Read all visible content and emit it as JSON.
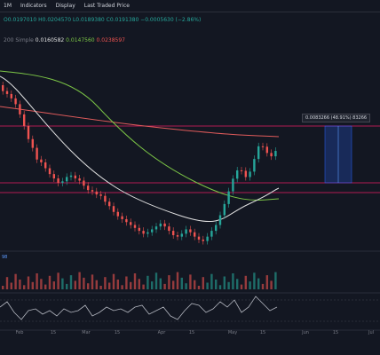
{
  "toolbar": {
    "interval": "1M",
    "indicators_label": "Indicators",
    "display_label": "Display",
    "price_label": "Last Traded Price"
  },
  "legend": {
    "ohlc": "O0.0197010 H0.0204570 L0.0189380 C0.0191380 −0.0005630 (−2.86%)",
    "sma": "200 Simple",
    "sma_values": [
      "0.0160582",
      "0.0147560",
      "0.0238597"
    ]
  },
  "volume_label": "98",
  "measure_tag": "0.0083266 (48.91%) 83266",
  "x_labels": [
    "Feb",
    "15",
    "Mar",
    "15",
    "Apr",
    "15",
    "May",
    "15",
    "Jun",
    "15",
    "Jul"
  ],
  "colors": {
    "up": "#26a69a",
    "down": "#ef5350",
    "ma_green": "#7cc646",
    "ma_white": "#e0e0e0",
    "ma_red": "#e05b5b",
    "hline": "#e91e63",
    "rsi": "#b2b5be"
  },
  "chart_data": {
    "type": "candlestick",
    "closes": [
      52,
      56,
      62,
      70,
      84,
      100,
      118,
      130,
      146,
      150,
      158,
      166,
      172,
      178,
      176,
      170,
      168,
      172,
      175,
      182,
      188,
      190,
      194,
      196,
      204,
      210,
      218,
      224,
      228,
      232,
      236,
      240,
      244,
      248,
      246,
      242,
      238,
      234,
      238,
      244,
      250,
      252,
      248,
      242,
      246,
      252,
      256,
      258,
      252,
      244,
      236,
      226,
      214,
      200,
      186,
      178,
      182,
      194,
      190,
      176,
      162,
      166,
      178,
      186,
      182
    ]
  }
}
